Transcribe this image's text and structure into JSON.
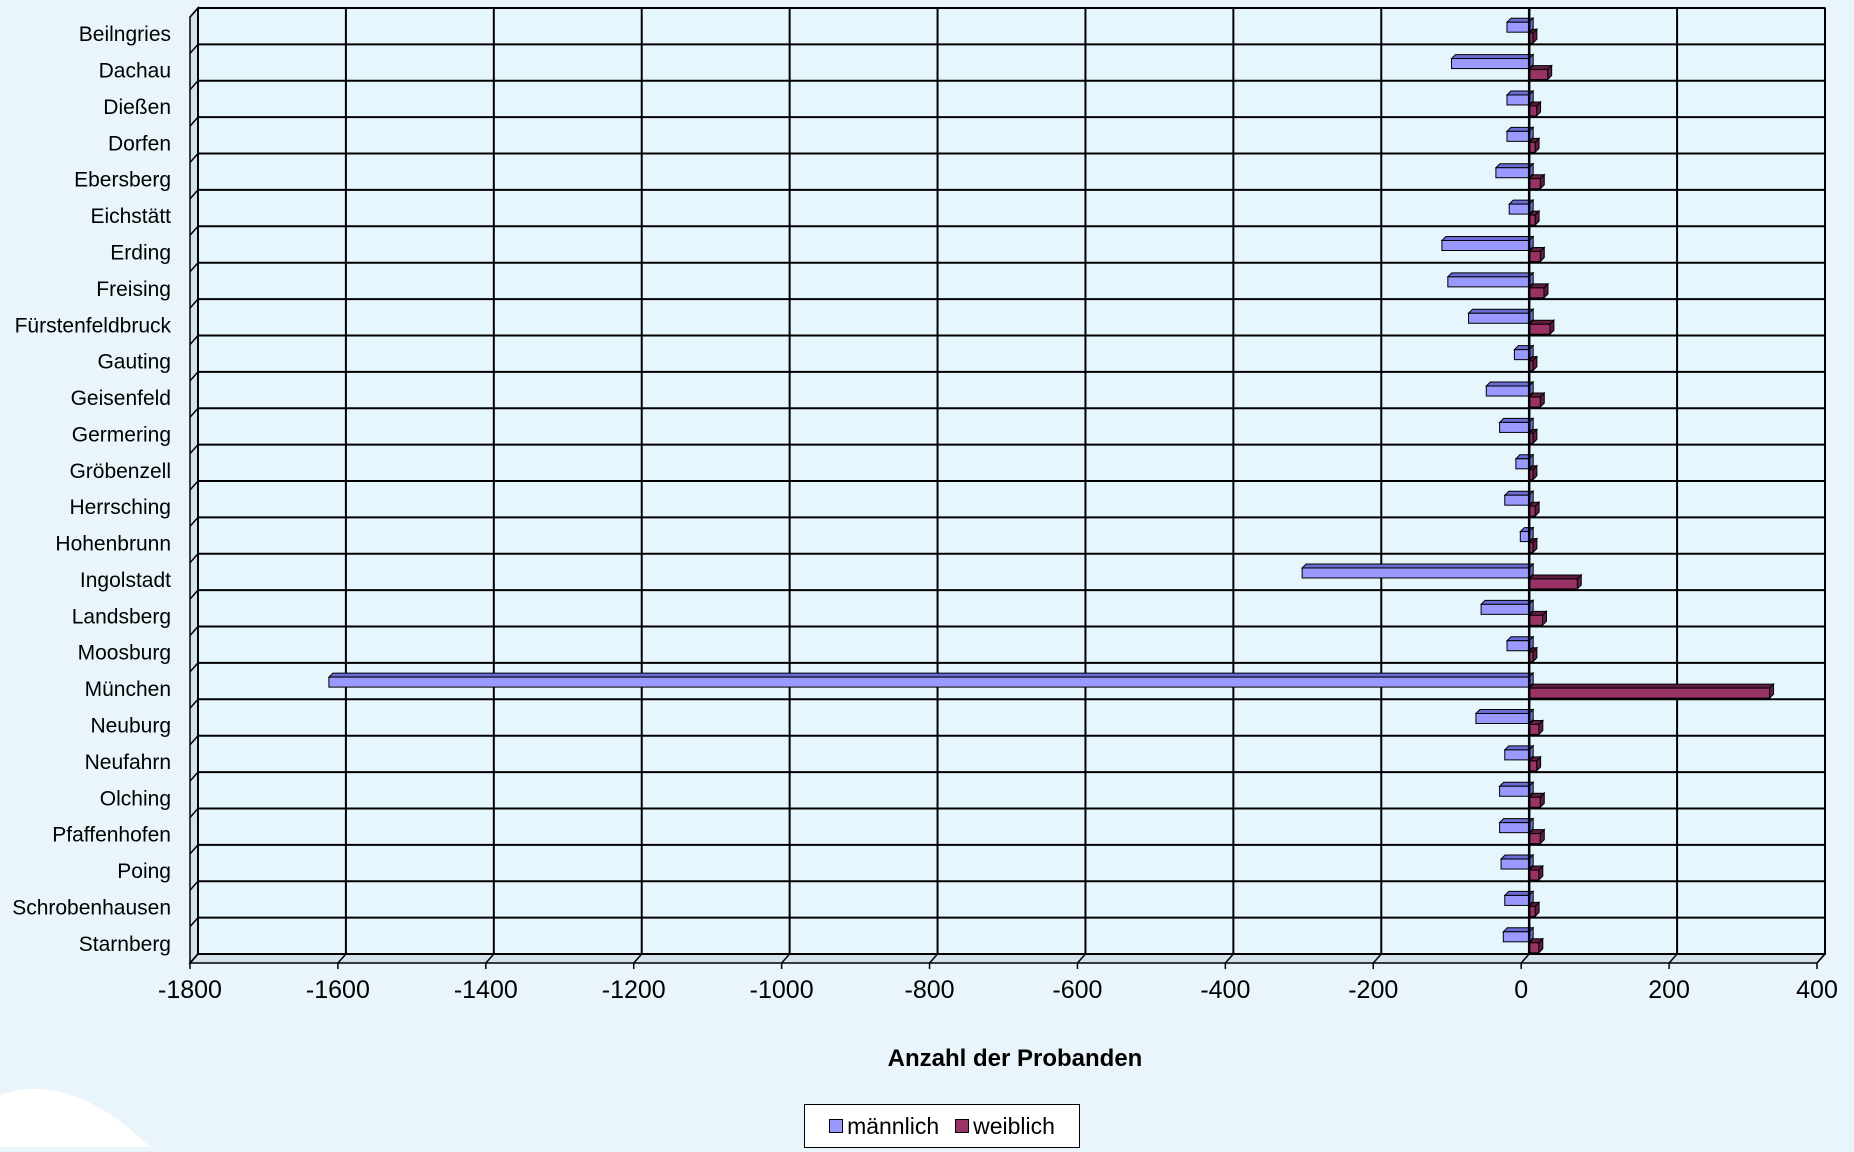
{
  "chart_data": {
    "type": "bar",
    "orientation": "horizontal",
    "title": "",
    "xlabel": "Anzahl der Probanden",
    "ylabel": "",
    "xlim": [
      -1800,
      400
    ],
    "x_ticks": [
      -1800,
      -1600,
      -1400,
      -1200,
      -1000,
      -800,
      -600,
      -400,
      -200,
      0,
      200,
      400
    ],
    "grid": true,
    "legend_position": "bottom",
    "categories": [
      "Beilngries",
      "Dachau",
      "Dießen",
      "Dorfen",
      "Ebersberg",
      "Eichstätt",
      "Erding",
      "Freising",
      "Fürstenfeldbruck",
      "Gauting",
      "Geisenfeld",
      "Germering",
      "Gröbenzell",
      "Herrsching",
      "Hohenbrunn",
      "Ingolstadt",
      "Landsberg",
      "Moosburg",
      "München",
      "Neuburg",
      "Neufahrn",
      "Olching",
      "Pfaffenhofen",
      "Poing",
      "Schrobenhausen",
      "Starnberg"
    ],
    "series": [
      {
        "name": "männlich",
        "color": "#9999ff",
        "values": [
          -30,
          -105,
          -30,
          -30,
          -45,
          -27,
          -118,
          -110,
          -82,
          -20,
          -58,
          -40,
          -18,
          -33,
          -12,
          -307,
          -65,
          -30,
          -1623,
          -72,
          -33,
          -40,
          -40,
          -38,
          -33,
          -35
        ]
      },
      {
        "name": "weiblich",
        "color": "#993366",
        "values": [
          5,
          25,
          10,
          8,
          15,
          8,
          15,
          20,
          28,
          5,
          15,
          5,
          5,
          8,
          5,
          65,
          18,
          5,
          325,
          13,
          10,
          15,
          15,
          13,
          8,
          13
        ]
      }
    ]
  },
  "legend": {
    "male": "männlich",
    "female": "weiblich"
  }
}
